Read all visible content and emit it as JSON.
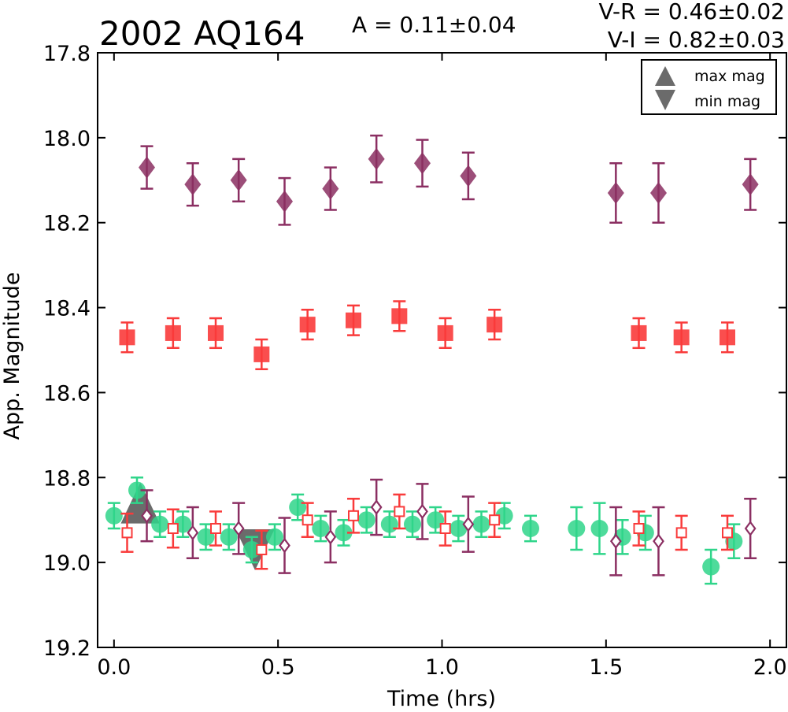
{
  "chart_data": {
    "type": "scatter",
    "title": "2002 AQ164",
    "xlabel": "Time (hrs)",
    "ylabel": "App. Magnitude",
    "xlim": [
      -0.05,
      2.05
    ],
    "ylim": [
      17.8,
      19.2
    ],
    "y_inverted": true,
    "xticks": [
      "0.0",
      "0.5",
      "1.0",
      "1.5",
      "2.0"
    ],
    "xtick_values": [
      0.0,
      0.5,
      1.0,
      1.5,
      2.0
    ],
    "yticks": [
      "17.8",
      "18.0",
      "18.2",
      "18.4",
      "18.6",
      "18.8",
      "19.0",
      "19.2"
    ],
    "ytick_values": [
      17.8,
      18.0,
      18.2,
      18.4,
      18.6,
      18.8,
      19.0,
      19.2
    ],
    "grid": false,
    "annotations": {
      "amplitude": "A  = 0.11±0.04",
      "v_r": "V-R = 0.46±0.02",
      "v_i": "V-I  = 0.82±0.03"
    },
    "legend": {
      "location": "top-right",
      "entries": [
        {
          "label": "max mag",
          "marker": "triangle-up"
        },
        {
          "label": "min mag",
          "marker": "triangle-down"
        }
      ]
    },
    "colors": {
      "i_band": "#8b2f62",
      "r_band": "#f93b3b",
      "v_band": "#2fd58a",
      "extrema": "#6b6b6b"
    },
    "series": [
      {
        "marker": "diamond",
        "filled": true,
        "color": "#8b2f62",
        "points": [
          {
            "x": 0.1,
            "y": 18.07,
            "err": 0.05
          },
          {
            "x": 0.24,
            "y": 18.11,
            "err": 0.05
          },
          {
            "x": 0.38,
            "y": 18.1,
            "err": 0.05
          },
          {
            "x": 0.52,
            "y": 18.15,
            "err": 0.055
          },
          {
            "x": 0.66,
            "y": 18.12,
            "err": 0.05
          },
          {
            "x": 0.8,
            "y": 18.05,
            "err": 0.055
          },
          {
            "x": 0.94,
            "y": 18.06,
            "err": 0.055
          },
          {
            "x": 1.08,
            "y": 18.09,
            "err": 0.055
          },
          {
            "x": 1.53,
            "y": 18.13,
            "err": 0.07
          },
          {
            "x": 1.66,
            "y": 18.13,
            "err": 0.07
          },
          {
            "x": 1.94,
            "y": 18.11,
            "err": 0.06
          }
        ]
      },
      {
        "marker": "square",
        "filled": true,
        "color": "#f93b3b",
        "points": [
          {
            "x": 0.04,
            "y": 18.47,
            "err": 0.035
          },
          {
            "x": 0.18,
            "y": 18.46,
            "err": 0.035
          },
          {
            "x": 0.31,
            "y": 18.46,
            "err": 0.035
          },
          {
            "x": 0.45,
            "y": 18.51,
            "err": 0.035
          },
          {
            "x": 0.59,
            "y": 18.44,
            "err": 0.035
          },
          {
            "x": 0.73,
            "y": 18.43,
            "err": 0.035
          },
          {
            "x": 0.87,
            "y": 18.42,
            "err": 0.035
          },
          {
            "x": 1.01,
            "y": 18.46,
            "err": 0.035
          },
          {
            "x": 1.16,
            "y": 18.44,
            "err": 0.035
          },
          {
            "x": 1.6,
            "y": 18.46,
            "err": 0.035
          },
          {
            "x": 1.73,
            "y": 18.47,
            "err": 0.035
          },
          {
            "x": 1.87,
            "y": 18.47,
            "err": 0.035
          }
        ]
      },
      {
        "marker": "circle",
        "filled": true,
        "color": "#2fd58a",
        "points": [
          {
            "x": 0.0,
            "y": 18.89,
            "err": 0.03
          },
          {
            "x": 0.07,
            "y": 18.83,
            "err": 0.03
          },
          {
            "x": 0.14,
            "y": 18.91,
            "err": 0.03
          },
          {
            "x": 0.21,
            "y": 18.91,
            "err": 0.03
          },
          {
            "x": 0.28,
            "y": 18.94,
            "err": 0.03
          },
          {
            "x": 0.35,
            "y": 18.94,
            "err": 0.03
          },
          {
            "x": 0.42,
            "y": 18.97,
            "err": 0.03
          },
          {
            "x": 0.49,
            "y": 18.94,
            "err": 0.03
          },
          {
            "x": 0.56,
            "y": 18.87,
            "err": 0.03
          },
          {
            "x": 0.63,
            "y": 18.92,
            "err": 0.03
          },
          {
            "x": 0.7,
            "y": 18.93,
            "err": 0.03
          },
          {
            "x": 0.77,
            "y": 18.9,
            "err": 0.03
          },
          {
            "x": 0.84,
            "y": 18.91,
            "err": 0.03
          },
          {
            "x": 0.91,
            "y": 18.91,
            "err": 0.03
          },
          {
            "x": 0.98,
            "y": 18.9,
            "err": 0.03
          },
          {
            "x": 1.05,
            "y": 18.92,
            "err": 0.03
          },
          {
            "x": 1.12,
            "y": 18.91,
            "err": 0.03
          },
          {
            "x": 1.19,
            "y": 18.89,
            "err": 0.03
          },
          {
            "x": 1.27,
            "y": 18.92,
            "err": 0.03
          },
          {
            "x": 1.41,
            "y": 18.92,
            "err": 0.05
          },
          {
            "x": 1.48,
            "y": 18.92,
            "err": 0.06
          },
          {
            "x": 1.55,
            "y": 18.94,
            "err": 0.04
          },
          {
            "x": 1.62,
            "y": 18.93,
            "err": 0.04
          },
          {
            "x": 1.82,
            "y": 19.01,
            "err": 0.04
          },
          {
            "x": 1.89,
            "y": 18.95,
            "err": 0.04
          }
        ]
      },
      {
        "marker": "square",
        "filled": false,
        "color": "#f93b3b",
        "points": [
          {
            "x": 0.04,
            "y": 18.93,
            "err": 0.045
          },
          {
            "x": 0.18,
            "y": 18.92,
            "err": 0.045
          },
          {
            "x": 0.31,
            "y": 18.92,
            "err": 0.04
          },
          {
            "x": 0.45,
            "y": 18.97,
            "err": 0.045
          },
          {
            "x": 0.59,
            "y": 18.9,
            "err": 0.04
          },
          {
            "x": 0.73,
            "y": 18.89,
            "err": 0.04
          },
          {
            "x": 0.87,
            "y": 18.88,
            "err": 0.04
          },
          {
            "x": 1.01,
            "y": 18.92,
            "err": 0.04
          },
          {
            "x": 1.16,
            "y": 18.9,
            "err": 0.04
          },
          {
            "x": 1.6,
            "y": 18.92,
            "err": 0.04
          },
          {
            "x": 1.73,
            "y": 18.93,
            "err": 0.04
          },
          {
            "x": 1.87,
            "y": 18.93,
            "err": 0.04
          }
        ]
      },
      {
        "marker": "diamond",
        "filled": false,
        "color": "#8b2f62",
        "points": [
          {
            "x": 0.1,
            "y": 18.89,
            "err": 0.06
          },
          {
            "x": 0.24,
            "y": 18.93,
            "err": 0.06
          },
          {
            "x": 0.38,
            "y": 18.92,
            "err": 0.06
          },
          {
            "x": 0.52,
            "y": 18.96,
            "err": 0.065
          },
          {
            "x": 0.66,
            "y": 18.94,
            "err": 0.06
          },
          {
            "x": 0.8,
            "y": 18.87,
            "err": 0.065
          },
          {
            "x": 0.94,
            "y": 18.88,
            "err": 0.065
          },
          {
            "x": 1.08,
            "y": 18.91,
            "err": 0.065
          },
          {
            "x": 1.53,
            "y": 18.95,
            "err": 0.08
          },
          {
            "x": 1.66,
            "y": 18.95,
            "err": 0.08
          },
          {
            "x": 1.94,
            "y": 18.92,
            "err": 0.07
          }
        ]
      }
    ],
    "extrema": [
      {
        "type": "max",
        "x": 0.08,
        "y": 18.86
      },
      {
        "type": "min",
        "x": 0.43,
        "y": 18.97
      }
    ]
  }
}
